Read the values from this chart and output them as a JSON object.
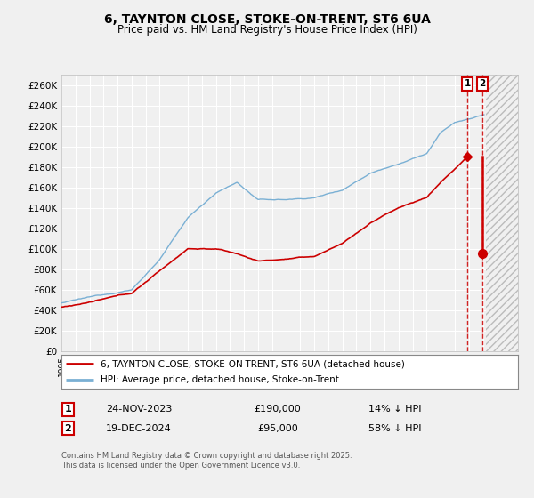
{
  "title": "6, TAYNTON CLOSE, STOKE-ON-TRENT, ST6 6UA",
  "subtitle": "Price paid vs. HM Land Registry's House Price Index (HPI)",
  "legend_line1": "6, TAYNTON CLOSE, STOKE-ON-TRENT, ST6 6UA (detached house)",
  "legend_line2": "HPI: Average price, detached house, Stoke-on-Trent",
  "footer": "Contains HM Land Registry data © Crown copyright and database right 2025.\nThis data is licensed under the Open Government Licence v3.0.",
  "point1_date": "24-NOV-2023",
  "point1_price": "£190,000",
  "point1_hpi": "14% ↓ HPI",
  "point1_year": 2023.9,
  "point1_value": 190000,
  "point2_date": "19-DEC-2024",
  "point2_price": "£95,000",
  "point2_hpi": "58% ↓ HPI",
  "point2_year": 2024.97,
  "point2_value": 95000,
  "ylim": [
    0,
    270000
  ],
  "xlim_start": 1995.0,
  "xlim_end": 2027.5,
  "hatch_start": 2025.2,
  "red_color": "#cc0000",
  "blue_color": "#7ab0d4",
  "background_color": "#f0f0f0",
  "grid_color": "#ffffff",
  "title_fontsize": 10,
  "subtitle_fontsize": 8.5
}
